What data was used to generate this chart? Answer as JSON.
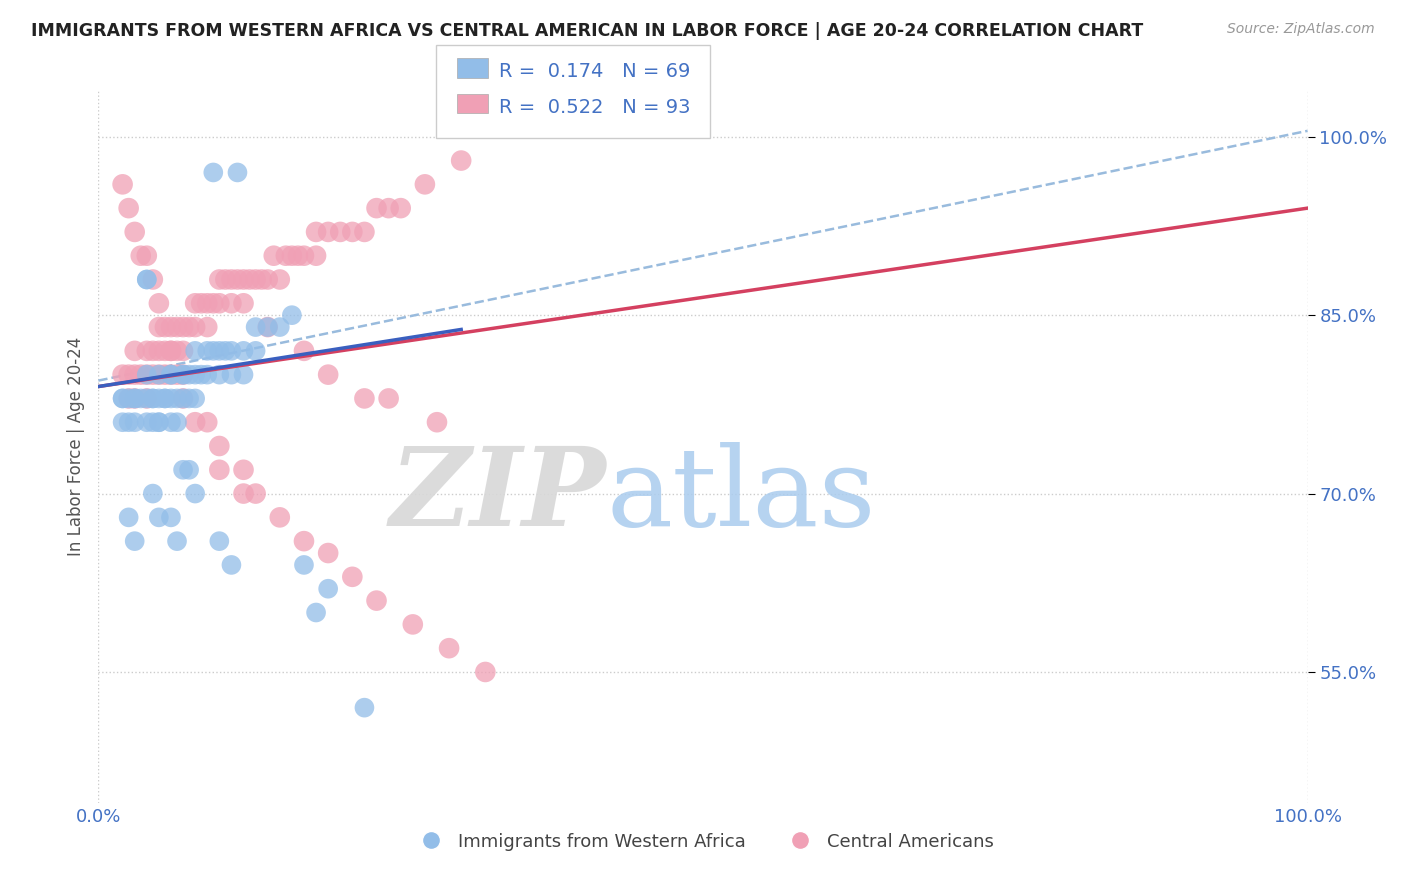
{
  "title": "IMMIGRANTS FROM WESTERN AFRICA VS CENTRAL AMERICAN IN LABOR FORCE | AGE 20-24 CORRELATION CHART",
  "source": "Source: ZipAtlas.com",
  "ylabel": "In Labor Force | Age 20-24",
  "xlim": [
    0.0,
    1.0
  ],
  "ylim": [
    0.44,
    1.04
  ],
  "ytick_positions": [
    0.55,
    0.7,
    0.85,
    1.0
  ],
  "blue_color": "#92BDE8",
  "pink_color": "#F0A0B5",
  "blue_line_color": "#3A5FBF",
  "pink_line_color": "#D44060",
  "dashed_line_color": "#99BBDD",
  "title_color": "#222222",
  "axis_label_color": "#555555",
  "tick_label_color": "#4472C4",
  "background_color": "#FFFFFF",
  "blue_scatter_x": [
    0.095,
    0.115,
    0.04,
    0.04,
    0.02,
    0.02,
    0.02,
    0.025,
    0.025,
    0.03,
    0.03,
    0.03,
    0.035,
    0.04,
    0.04,
    0.04,
    0.045,
    0.045,
    0.045,
    0.05,
    0.05,
    0.05,
    0.05,
    0.055,
    0.055,
    0.06,
    0.06,
    0.06,
    0.06,
    0.065,
    0.065,
    0.07,
    0.07,
    0.07,
    0.075,
    0.075,
    0.08,
    0.08,
    0.08,
    0.085,
    0.09,
    0.09,
    0.095,
    0.1,
    0.1,
    0.105,
    0.11,
    0.11,
    0.12,
    0.12,
    0.13,
    0.13,
    0.14,
    0.15,
    0.16,
    0.07,
    0.075,
    0.08,
    0.045,
    0.05,
    0.025,
    0.03,
    0.06,
    0.065,
    0.1,
    0.11,
    0.17,
    0.19,
    0.18,
    0.22
  ],
  "blue_scatter_y": [
    0.97,
    0.97,
    0.88,
    0.88,
    0.78,
    0.78,
    0.76,
    0.78,
    0.76,
    0.78,
    0.78,
    0.76,
    0.78,
    0.8,
    0.78,
    0.76,
    0.78,
    0.78,
    0.76,
    0.8,
    0.78,
    0.76,
    0.76,
    0.78,
    0.78,
    0.8,
    0.8,
    0.78,
    0.76,
    0.78,
    0.76,
    0.8,
    0.8,
    0.78,
    0.8,
    0.78,
    0.82,
    0.8,
    0.78,
    0.8,
    0.82,
    0.8,
    0.82,
    0.82,
    0.8,
    0.82,
    0.82,
    0.8,
    0.82,
    0.8,
    0.84,
    0.82,
    0.84,
    0.84,
    0.85,
    0.72,
    0.72,
    0.7,
    0.7,
    0.68,
    0.68,
    0.66,
    0.68,
    0.66,
    0.66,
    0.64,
    0.64,
    0.62,
    0.6,
    0.52
  ],
  "pink_scatter_x": [
    0.02,
    0.025,
    0.025,
    0.03,
    0.03,
    0.03,
    0.035,
    0.04,
    0.04,
    0.04,
    0.045,
    0.045,
    0.05,
    0.05,
    0.05,
    0.055,
    0.055,
    0.06,
    0.06,
    0.06,
    0.065,
    0.065,
    0.07,
    0.07,
    0.07,
    0.075,
    0.08,
    0.08,
    0.085,
    0.09,
    0.09,
    0.095,
    0.1,
    0.1,
    0.105,
    0.11,
    0.11,
    0.115,
    0.12,
    0.12,
    0.125,
    0.13,
    0.135,
    0.14,
    0.145,
    0.15,
    0.155,
    0.16,
    0.165,
    0.17,
    0.18,
    0.18,
    0.19,
    0.2,
    0.21,
    0.22,
    0.23,
    0.24,
    0.25,
    0.27,
    0.3,
    0.02,
    0.025,
    0.03,
    0.035,
    0.04,
    0.045,
    0.05,
    0.055,
    0.06,
    0.065,
    0.07,
    0.08,
    0.09,
    0.1,
    0.12,
    0.13,
    0.15,
    0.17,
    0.19,
    0.21,
    0.23,
    0.26,
    0.29,
    0.32,
    0.22,
    0.28,
    0.14,
    0.17,
    0.19,
    0.24,
    0.1,
    0.12
  ],
  "pink_scatter_y": [
    0.8,
    0.8,
    0.78,
    0.82,
    0.8,
    0.78,
    0.8,
    0.82,
    0.8,
    0.78,
    0.82,
    0.8,
    0.84,
    0.82,
    0.8,
    0.82,
    0.8,
    0.84,
    0.82,
    0.8,
    0.84,
    0.82,
    0.84,
    0.82,
    0.8,
    0.84,
    0.86,
    0.84,
    0.86,
    0.86,
    0.84,
    0.86,
    0.88,
    0.86,
    0.88,
    0.88,
    0.86,
    0.88,
    0.88,
    0.86,
    0.88,
    0.88,
    0.88,
    0.88,
    0.9,
    0.88,
    0.9,
    0.9,
    0.9,
    0.9,
    0.92,
    0.9,
    0.92,
    0.92,
    0.92,
    0.92,
    0.94,
    0.94,
    0.94,
    0.96,
    0.98,
    0.96,
    0.94,
    0.92,
    0.9,
    0.9,
    0.88,
    0.86,
    0.84,
    0.82,
    0.8,
    0.78,
    0.76,
    0.76,
    0.74,
    0.72,
    0.7,
    0.68,
    0.66,
    0.65,
    0.63,
    0.61,
    0.59,
    0.57,
    0.55,
    0.78,
    0.76,
    0.84,
    0.82,
    0.8,
    0.78,
    0.72,
    0.7
  ],
  "dashed_line_x": [
    0.0,
    1.0
  ],
  "dashed_line_y": [
    0.795,
    1.005
  ]
}
